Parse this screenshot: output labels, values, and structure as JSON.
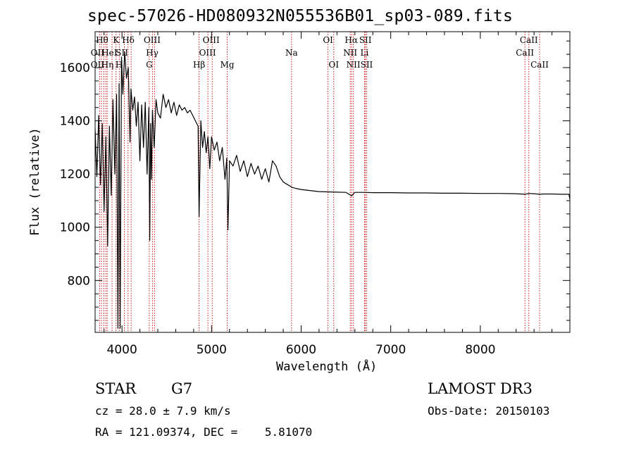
{
  "chart_data": {
    "type": "line",
    "title": "spec-57026-HD080932N055536B01_sp03-089.fits",
    "xlabel": "Wavelength (Å)",
    "ylabel": "Flux (relative)",
    "xlim": [
      3700,
      9000
    ],
    "ylim": [
      605,
      1735
    ],
    "xticks": [
      4000,
      5000,
      6000,
      7000,
      8000
    ],
    "yticks": [
      800,
      1000,
      1200,
      1400,
      1600
    ],
    "grid": false,
    "series": [
      {
        "color": "#000000",
        "x": [
          3700,
          3720,
          3740,
          3760,
          3780,
          3800,
          3820,
          3840,
          3860,
          3880,
          3900,
          3920,
          3940,
          3955,
          3968,
          3980,
          3995,
          4010,
          4030,
          4050,
          4070,
          4090,
          4100,
          4120,
          4140,
          4160,
          4180,
          4200,
          4220,
          4240,
          4260,
          4280,
          4300,
          4310,
          4320,
          4330,
          4340,
          4360,
          4380,
          4400,
          4430,
          4460,
          4490,
          4520,
          4550,
          4580,
          4610,
          4640,
          4670,
          4700,
          4730,
          4760,
          4790,
          4820,
          4850,
          4861,
          4880,
          4900,
          4920,
          4940,
          4960,
          4980,
          5000,
          5030,
          5060,
          5090,
          5120,
          5150,
          5170,
          5183,
          5200,
          5240,
          5280,
          5320,
          5360,
          5400,
          5440,
          5480,
          5520,
          5560,
          5600,
          5640,
          5680,
          5720,
          5760,
          5800,
          5850,
          5900,
          5950,
          6000,
          6100,
          6200,
          6300,
          6400,
          6500,
          6563,
          6600,
          6700,
          6800,
          7000,
          7200,
          7400,
          7600,
          7800,
          8000,
          8200,
          8400,
          8500,
          8540,
          8600,
          8662,
          8700,
          8800,
          8900,
          8990,
          9000
        ],
        "values": [
          1370,
          1190,
          1420,
          1160,
          1390,
          1060,
          1340,
          930,
          1380,
          1120,
          1480,
          1200,
          1500,
          620,
          1540,
          620,
          1640,
          1500,
          1660,
          1560,
          1600,
          1320,
          1520,
          1440,
          1490,
          1380,
          1470,
          1250,
          1460,
          1300,
          1470,
          1200,
          1450,
          950,
          1390,
          1180,
          1440,
          1300,
          1480,
          1430,
          1410,
          1500,
          1450,
          1480,
          1430,
          1470,
          1420,
          1460,
          1440,
          1450,
          1430,
          1440,
          1420,
          1400,
          1380,
          1040,
          1400,
          1300,
          1360,
          1280,
          1340,
          1220,
          1340,
          1290,
          1320,
          1250,
          1300,
          1180,
          1260,
          990,
          1250,
          1230,
          1270,
          1210,
          1250,
          1190,
          1240,
          1200,
          1230,
          1180,
          1220,
          1170,
          1250,
          1230,
          1190,
          1170,
          1160,
          1150,
          1145,
          1142,
          1138,
          1134,
          1133,
          1132,
          1131,
          1118,
          1131,
          1131,
          1130,
          1130,
          1129,
          1129,
          1128,
          1128,
          1127,
          1127,
          1126,
          1124,
          1127,
          1126,
          1124,
          1125,
          1125,
          1124,
          1124,
          1105
        ]
      }
    ],
    "lines": {
      "x": [
        3750,
        3771,
        3798,
        3820,
        3835,
        3889,
        3934,
        3970,
        4026,
        4068,
        4102,
        4304,
        4340,
        4363,
        4861,
        4959,
        5007,
        5175,
        5893,
        6300,
        6364,
        6548,
        6563,
        6583,
        6707,
        6716,
        6731,
        8498,
        8542,
        8662
      ],
      "color": "#cc0000"
    },
    "line_labels": [
      {
        "text": "Hθ",
        "x": 3778,
        "row": 0
      },
      {
        "text": "K",
        "x": 3934,
        "row": 0
      },
      {
        "text": "Hδ",
        "x": 4070,
        "row": 0
      },
      {
        "text": "OIII",
        "x": 4337,
        "row": 0
      },
      {
        "text": "OIII",
        "x": 4995,
        "row": 0
      },
      {
        "text": "OI",
        "x": 6300,
        "row": 0
      },
      {
        "text": "Hα",
        "x": 6560,
        "row": 0
      },
      {
        "text": "SII",
        "x": 6717,
        "row": 0
      },
      {
        "text": "CaII",
        "x": 8542,
        "row": 0
      },
      {
        "text": "OII",
        "x": 3727,
        "row": 1
      },
      {
        "text": "HeI",
        "x": 3860,
        "row": 1
      },
      {
        "text": "SII",
        "x": 4000,
        "row": 1
      },
      {
        "text": "Hγ",
        "x": 4337,
        "row": 1
      },
      {
        "text": "OIII",
        "x": 4955,
        "row": 1
      },
      {
        "text": "Na",
        "x": 5893,
        "row": 1
      },
      {
        "text": "NII",
        "x": 6548,
        "row": 1
      },
      {
        "text": "Li",
        "x": 6707,
        "row": 1
      },
      {
        "text": "CaII",
        "x": 8498,
        "row": 1
      },
      {
        "text": "OII",
        "x": 3727,
        "row": 2
      },
      {
        "text": "Hη",
        "x": 3838,
        "row": 2
      },
      {
        "text": "H",
        "x": 3968,
        "row": 2
      },
      {
        "text": "G",
        "x": 4305,
        "row": 2
      },
      {
        "text": "Hβ",
        "x": 4861,
        "row": 2
      },
      {
        "text": "Mg",
        "x": 5175,
        "row": 2
      },
      {
        "text": "OI",
        "x": 6364,
        "row": 2
      },
      {
        "text": "NII",
        "x": 6583,
        "row": 2
      },
      {
        "text": "SII",
        "x": 6731,
        "row": 2
      },
      {
        "text": "CaII",
        "x": 8662,
        "row": 2
      }
    ]
  },
  "info": {
    "object_type": "STAR",
    "subclass": "G7",
    "survey": "LAMOST DR3",
    "cz": "cz = 28.0 ± 7.9 km/s",
    "coords": "RA = 121.09374, DEC =    5.81070",
    "obs_date": "Obs-Date: 20150103"
  }
}
